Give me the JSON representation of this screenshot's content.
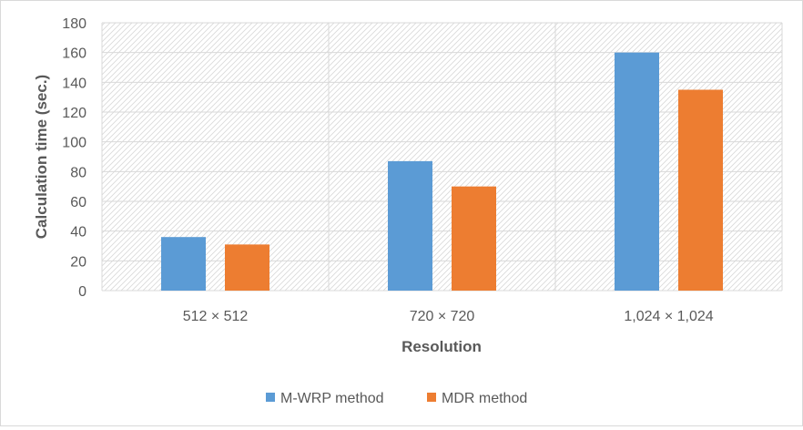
{
  "chart_data": {
    "type": "bar",
    "title": "",
    "xlabel": "Resolution",
    "ylabel": "Calculation time (sec.)",
    "categories": [
      "512 × 512",
      "720 × 720",
      "1,024 × 1,024"
    ],
    "series": [
      {
        "name": "M-WRP method",
        "values": [
          36,
          87,
          160
        ],
        "color": "#5b9bd5"
      },
      {
        "name": "MDR method",
        "values": [
          31,
          70,
          135
        ],
        "color": "#ed7d31"
      }
    ],
    "ylim": [
      0,
      180
    ],
    "yticks": [
      "0",
      "20",
      "40",
      "60",
      "80",
      "100",
      "120",
      "140",
      "160",
      "180"
    ],
    "grid": true,
    "legend_position": "bottom"
  }
}
